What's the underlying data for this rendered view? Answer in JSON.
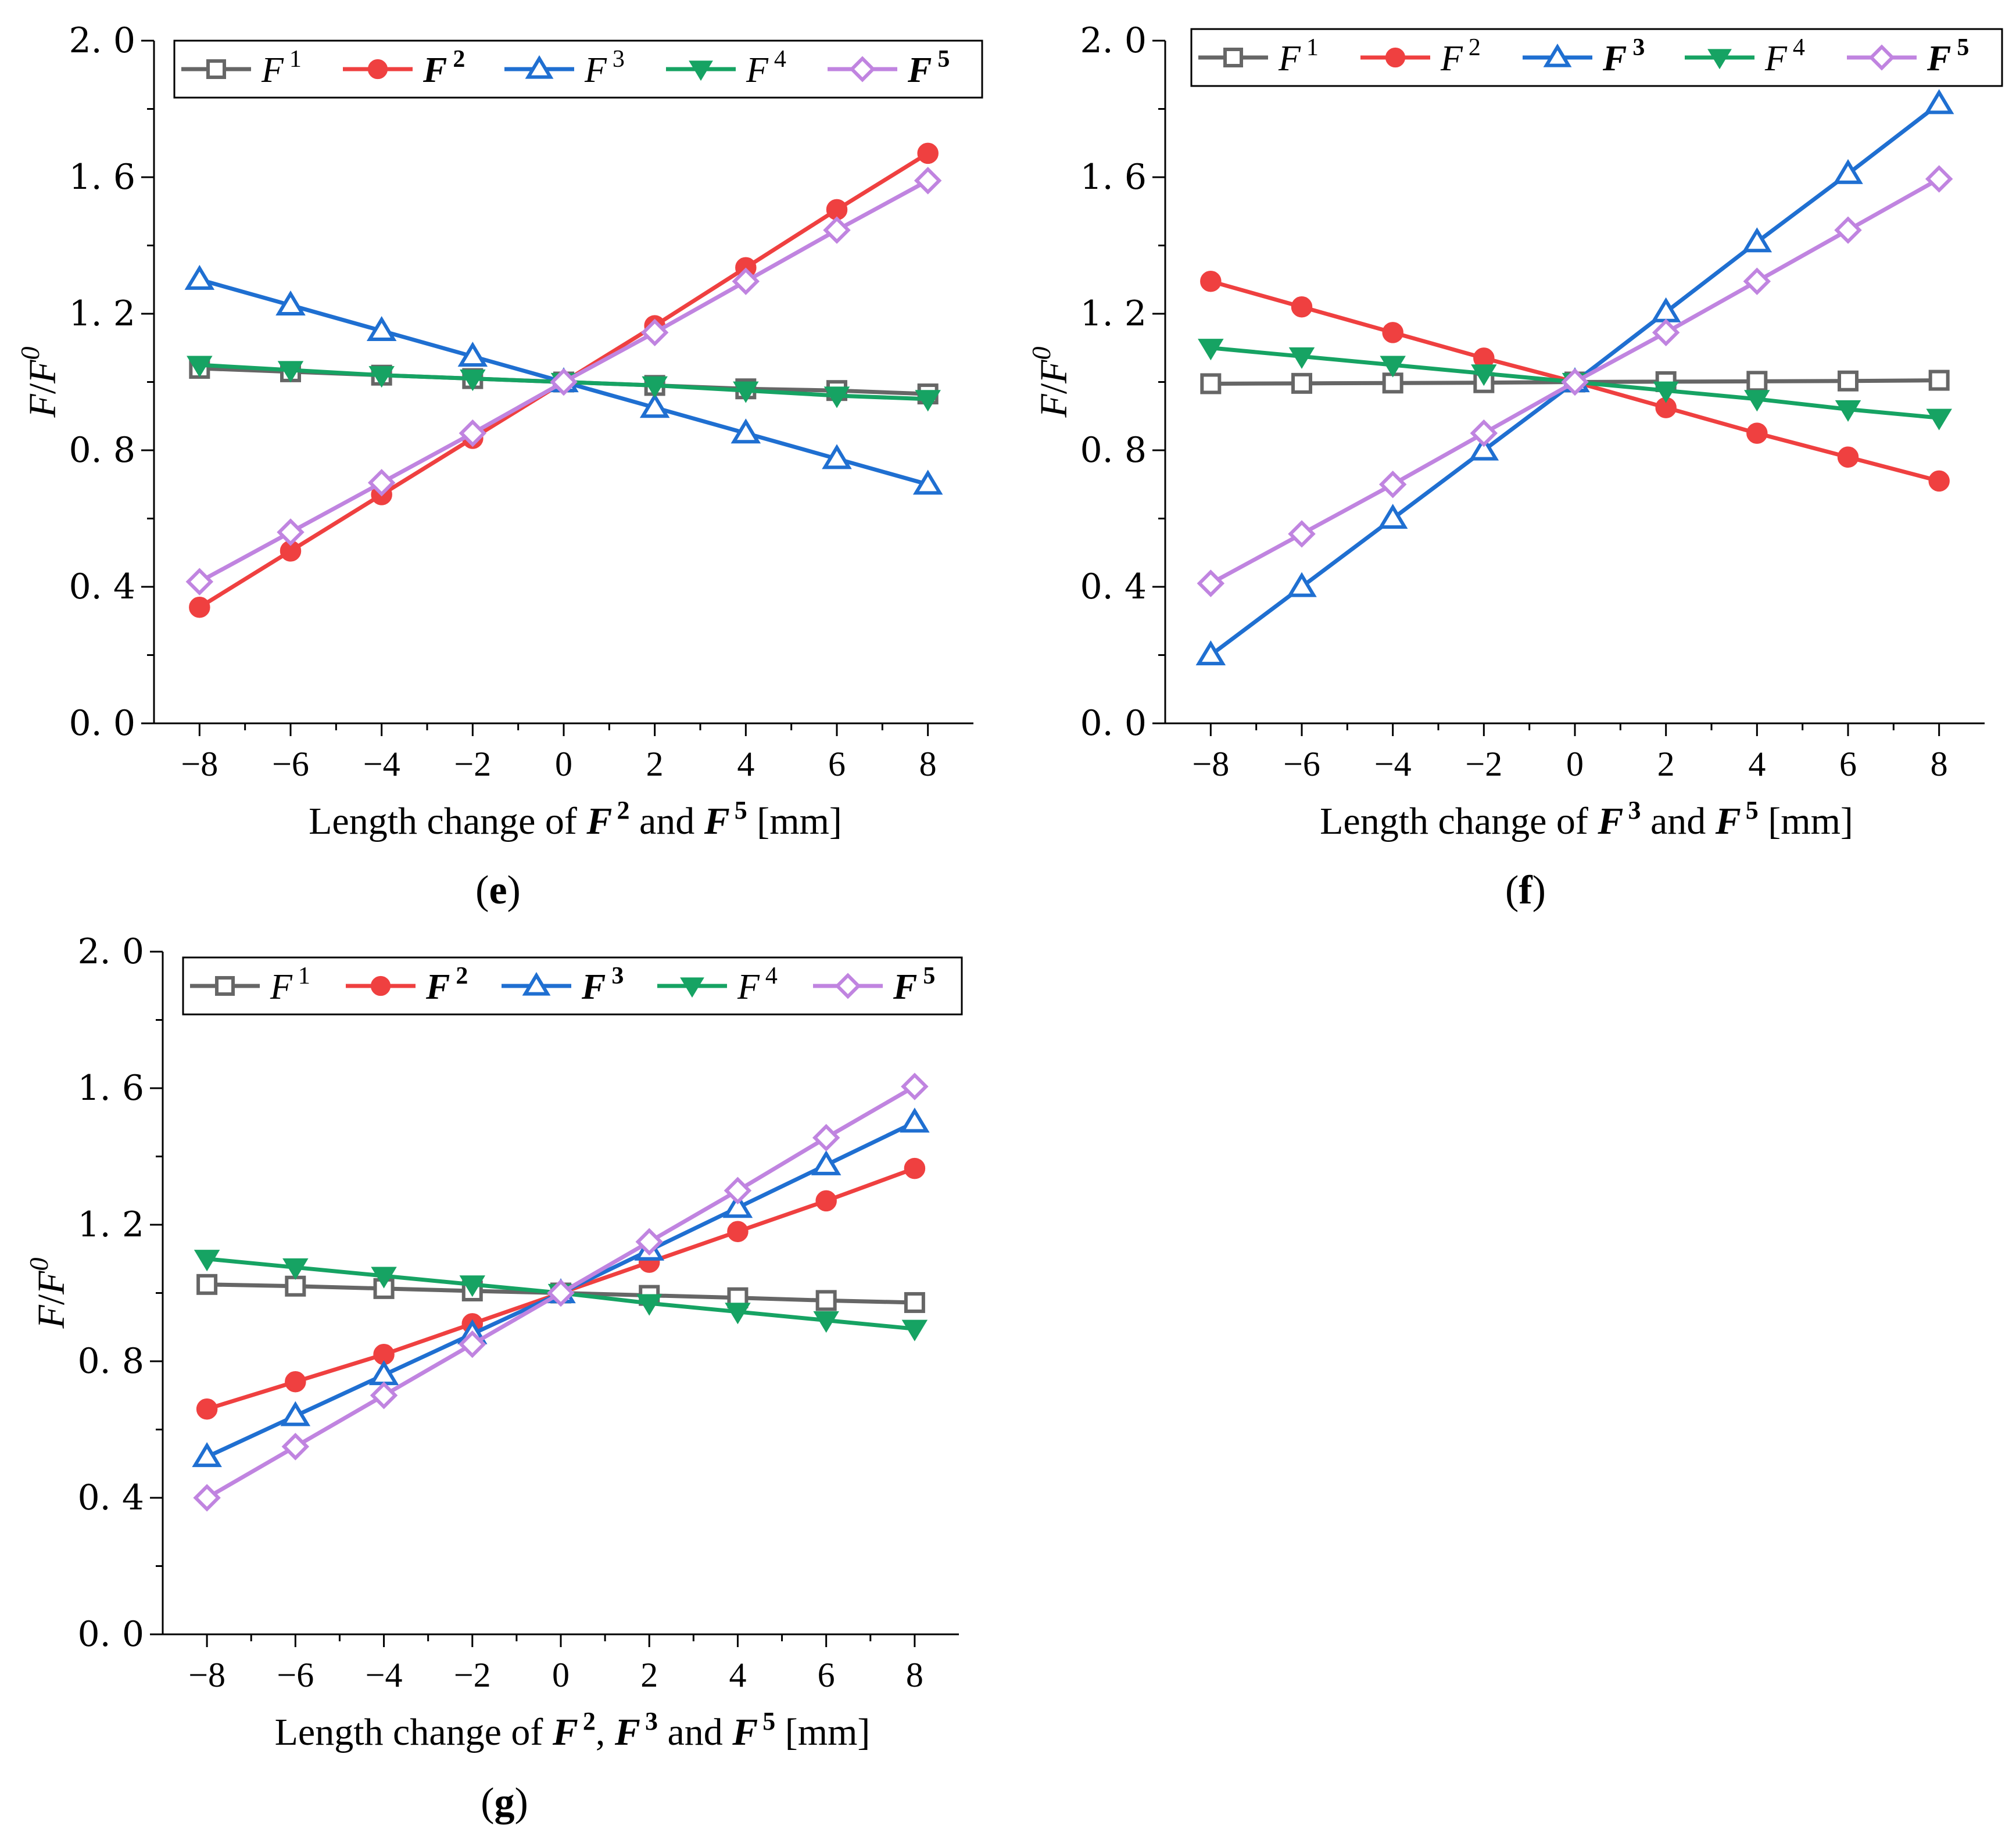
{
  "chart_data": [
    {
      "panel": "(e)",
      "type": "line",
      "x": [
        -8,
        -6,
        -4,
        -2,
        0,
        2,
        4,
        6,
        8
      ],
      "xticks": [
        "−8",
        "−6",
        "−4",
        "−2",
        "0",
        "2",
        "4",
        "6",
        "8"
      ],
      "yticks": [
        "0. 0",
        "0. 4",
        "0. 8",
        "1. 2",
        "1. 6",
        "2. 0"
      ],
      "xlim": [
        -9,
        9
      ],
      "ylim": [
        0,
        2
      ],
      "xlabel_parts": [
        {
          "t": "Length change of ",
          "style": "normal"
        },
        {
          "t": "F",
          "style": "bolditalic"
        },
        {
          "t": "2",
          "style": "boldsup"
        },
        {
          "t": " and ",
          "style": "normal"
        },
        {
          "t": "F",
          "style": "bolditalic"
        },
        {
          "t": "5",
          "style": "boldsup"
        },
        {
          "t": " [mm]",
          "style": "normal"
        }
      ],
      "ylabel": {
        "base": "F",
        "slash": "/",
        "base2": "F",
        "sup": "0"
      },
      "series": [
        {
          "name": "F",
          "sup": "1",
          "bold": false,
          "color": "#666666",
          "marker": "square",
          "values": [
            1.04,
            1.03,
            1.02,
            1.01,
            1.0,
            0.99,
            0.98,
            0.975,
            0.965
          ]
        },
        {
          "name": "F",
          "sup": "2",
          "bold": true,
          "color": "#ef4040",
          "marker": "circle",
          "values": [
            0.34,
            0.505,
            0.67,
            0.835,
            1.0,
            1.165,
            1.335,
            1.505,
            1.67
          ]
        },
        {
          "name": "F",
          "sup": "3",
          "bold": false,
          "color": "#1f6fd1",
          "marker": "triangle",
          "values": [
            1.3,
            1.225,
            1.15,
            1.075,
            1.0,
            0.925,
            0.85,
            0.775,
            0.7
          ]
        },
        {
          "name": "F",
          "sup": "4",
          "bold": false,
          "color": "#16a363",
          "marker": "triangle-down",
          "values": [
            1.05,
            1.035,
            1.02,
            1.01,
            1.0,
            0.99,
            0.975,
            0.96,
            0.95
          ]
        },
        {
          "name": "F",
          "sup": "5",
          "bold": true,
          "color": "#c084e0",
          "marker": "diamond",
          "values": [
            0.415,
            0.56,
            0.705,
            0.85,
            1.0,
            1.145,
            1.295,
            1.445,
            1.59
          ]
        }
      ]
    },
    {
      "panel": "(f)",
      "type": "line",
      "x": [
        -8,
        -6,
        -4,
        -2,
        0,
        2,
        4,
        6,
        8
      ],
      "xticks": [
        "−8",
        "−6",
        "−4",
        "−2",
        "0",
        "2",
        "4",
        "6",
        "8"
      ],
      "yticks": [
        "0. 0",
        "0. 4",
        "0. 8",
        "1. 2",
        "1. 6",
        "2. 0"
      ],
      "xlim": [
        -9,
        9
      ],
      "ylim": [
        0,
        2
      ],
      "xlabel_parts": [
        {
          "t": "Length change of ",
          "style": "normal"
        },
        {
          "t": "F",
          "style": "bolditalic"
        },
        {
          "t": "3",
          "style": "boldsup"
        },
        {
          "t": " and ",
          "style": "normal"
        },
        {
          "t": "F",
          "style": "bolditalic"
        },
        {
          "t": "5",
          "style": "boldsup"
        },
        {
          "t": " [mm]",
          "style": "normal"
        }
      ],
      "ylabel": {
        "base": "F",
        "slash": "/",
        "base2": "F",
        "sup": "0"
      },
      "series": [
        {
          "name": "F",
          "sup": "1",
          "bold": false,
          "color": "#666666",
          "marker": "square",
          "values": [
            0.995,
            0.996,
            0.997,
            0.998,
            1.0,
            1.001,
            1.002,
            1.003,
            1.005
          ]
        },
        {
          "name": "F",
          "sup": "2",
          "bold": false,
          "color": "#ef4040",
          "marker": "circle",
          "values": [
            1.295,
            1.22,
            1.145,
            1.07,
            1.0,
            0.925,
            0.85,
            0.78,
            0.71
          ]
        },
        {
          "name": "F",
          "sup": "3",
          "bold": true,
          "color": "#1f6fd1",
          "marker": "triangle",
          "values": [
            0.2,
            0.4,
            0.6,
            0.8,
            1.0,
            1.205,
            1.41,
            1.61,
            1.815
          ]
        },
        {
          "name": "F",
          "sup": "4",
          "bold": false,
          "color": "#16a363",
          "marker": "triangle-down",
          "values": [
            1.1,
            1.075,
            1.05,
            1.025,
            1.0,
            0.975,
            0.95,
            0.92,
            0.895
          ]
        },
        {
          "name": "F",
          "sup": "5",
          "bold": true,
          "color": "#c084e0",
          "marker": "diamond",
          "values": [
            0.41,
            0.555,
            0.7,
            0.85,
            1.0,
            1.145,
            1.295,
            1.445,
            1.595
          ]
        }
      ]
    },
    {
      "panel": "(g)",
      "type": "line",
      "x": [
        -8,
        -6,
        -4,
        -2,
        0,
        2,
        4,
        6,
        8
      ],
      "xticks": [
        "−8",
        "−6",
        "−4",
        "−2",
        "0",
        "2",
        "4",
        "6",
        "8"
      ],
      "yticks": [
        "0. 0",
        "0. 4",
        "0. 8",
        "1. 2",
        "1. 6",
        "2. 0"
      ],
      "xlim": [
        -9,
        9
      ],
      "ylim": [
        0,
        2
      ],
      "xlabel_parts": [
        {
          "t": "Length change of ",
          "style": "normal"
        },
        {
          "t": "F",
          "style": "bolditalic"
        },
        {
          "t": "2",
          "style": "boldsup"
        },
        {
          "t": ", ",
          "style": "normal"
        },
        {
          "t": "F",
          "style": "bolditalic"
        },
        {
          "t": "3",
          "style": "boldsup"
        },
        {
          "t": " and ",
          "style": "normal"
        },
        {
          "t": "F",
          "style": "bolditalic"
        },
        {
          "t": "5",
          "style": "boldsup"
        },
        {
          "t": " [mm]",
          "style": "normal"
        }
      ],
      "ylabel": {
        "base": "F",
        "slash": "/",
        "base2": "F",
        "sup": "0"
      },
      "series": [
        {
          "name": "F",
          "sup": "1",
          "bold": false,
          "color": "#666666",
          "marker": "square",
          "values": [
            1.025,
            1.02,
            1.013,
            1.006,
            1.0,
            0.993,
            0.986,
            0.978,
            0.972
          ]
        },
        {
          "name": "F",
          "sup": "2",
          "bold": true,
          "color": "#ef4040",
          "marker": "circle",
          "values": [
            0.66,
            0.74,
            0.82,
            0.91,
            1.0,
            1.09,
            1.18,
            1.27,
            1.365
          ]
        },
        {
          "name": "F",
          "sup": "3",
          "bold": true,
          "color": "#1f6fd1",
          "marker": "triangle",
          "values": [
            0.52,
            0.64,
            0.76,
            0.88,
            1.0,
            1.125,
            1.25,
            1.375,
            1.5
          ]
        },
        {
          "name": "F",
          "sup": "4",
          "bold": false,
          "color": "#16a363",
          "marker": "triangle-down",
          "values": [
            1.1,
            1.075,
            1.05,
            1.025,
            1.0,
            0.97,
            0.945,
            0.92,
            0.895
          ]
        },
        {
          "name": "F",
          "sup": "5",
          "bold": true,
          "color": "#c084e0",
          "marker": "diamond",
          "values": [
            0.4,
            0.55,
            0.7,
            0.85,
            1.0,
            1.15,
            1.3,
            1.455,
            1.605
          ]
        }
      ]
    }
  ]
}
